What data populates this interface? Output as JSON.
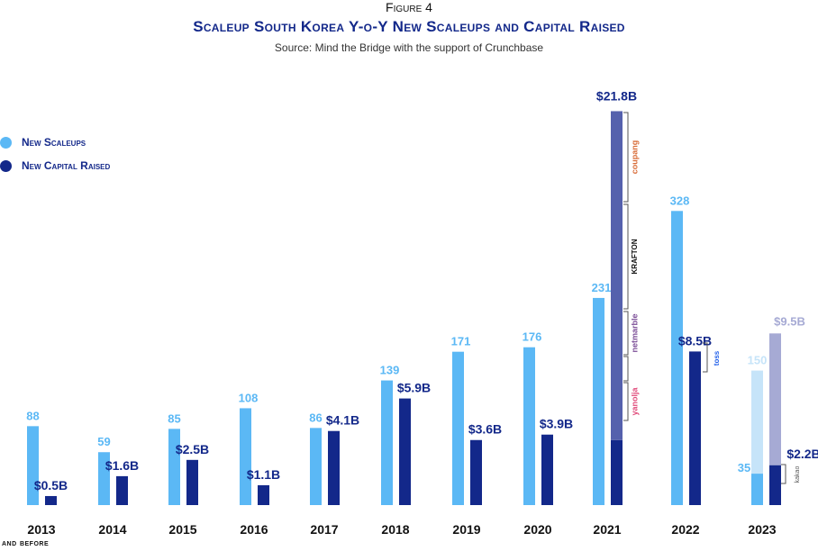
{
  "figure_label": "Figure 4",
  "title": "Scaleup South Korea Y-o-Y New Scaleups and Capital Raised",
  "subtitle": "Source: Mind the Bridge with the support of Crunchbase",
  "legend": [
    {
      "label": "New Scaleups",
      "color": "#5bb8f5"
    },
    {
      "label": "New Capital Raised",
      "color": "#13288a"
    }
  ],
  "year_note": "and before",
  "colors": {
    "scaleups": "#5bb8f5",
    "capital": "#13288a",
    "capital_highlight": "#5561ad",
    "scaleups_light": "#c6e4f9",
    "capital_light": "#a6aad4",
    "text_dark": "#111111",
    "brand_coupang": "#d86a35",
    "brand_netmarble": "#7a4c96",
    "brand_yanolja": "#e04a7a",
    "brand_toss": "#2563eb"
  },
  "chart_data": {
    "type": "bar",
    "categories": [
      "2013",
      "2014",
      "2015",
      "2016",
      "2017",
      "2018",
      "2019",
      "2020",
      "2021",
      "2022",
      "2023"
    ],
    "series": [
      {
        "name": "New Scaleups",
        "values": [
          88,
          59,
          85,
          108,
          86,
          139,
          171,
          176,
          231,
          328,
          35
        ],
        "labels": [
          "88",
          "59",
          "85",
          "108",
          "86",
          "139",
          "171",
          "176",
          "231",
          "328",
          "35"
        ]
      },
      {
        "name": "New Capital Raised",
        "values": [
          0.5,
          1.6,
          2.5,
          1.1,
          4.1,
          5.9,
          3.6,
          3.9,
          21.8,
          8.5,
          2.2
        ],
        "labels": [
          "$0.5B",
          "$1.6B",
          "$2.5B",
          "$1.1B",
          "$4.1B",
          "$5.9B",
          "$3.6B",
          "$3.9B",
          "$21.8B",
          "$8.5B",
          "$2.2B"
        ]
      }
    ],
    "projection_2023": {
      "scaleups": 150,
      "scaleups_label": "150",
      "capital": 9.5,
      "capital_label": "$9.5B"
    },
    "highlight_2021_capital_base": 3.6,
    "brand_annotations": {
      "2021": [
        "coupang",
        "KRAFTON",
        "netmarble",
        "yanolja"
      ],
      "2022": [
        "toss"
      ],
      "2023": [
        "kakao"
      ]
    }
  }
}
